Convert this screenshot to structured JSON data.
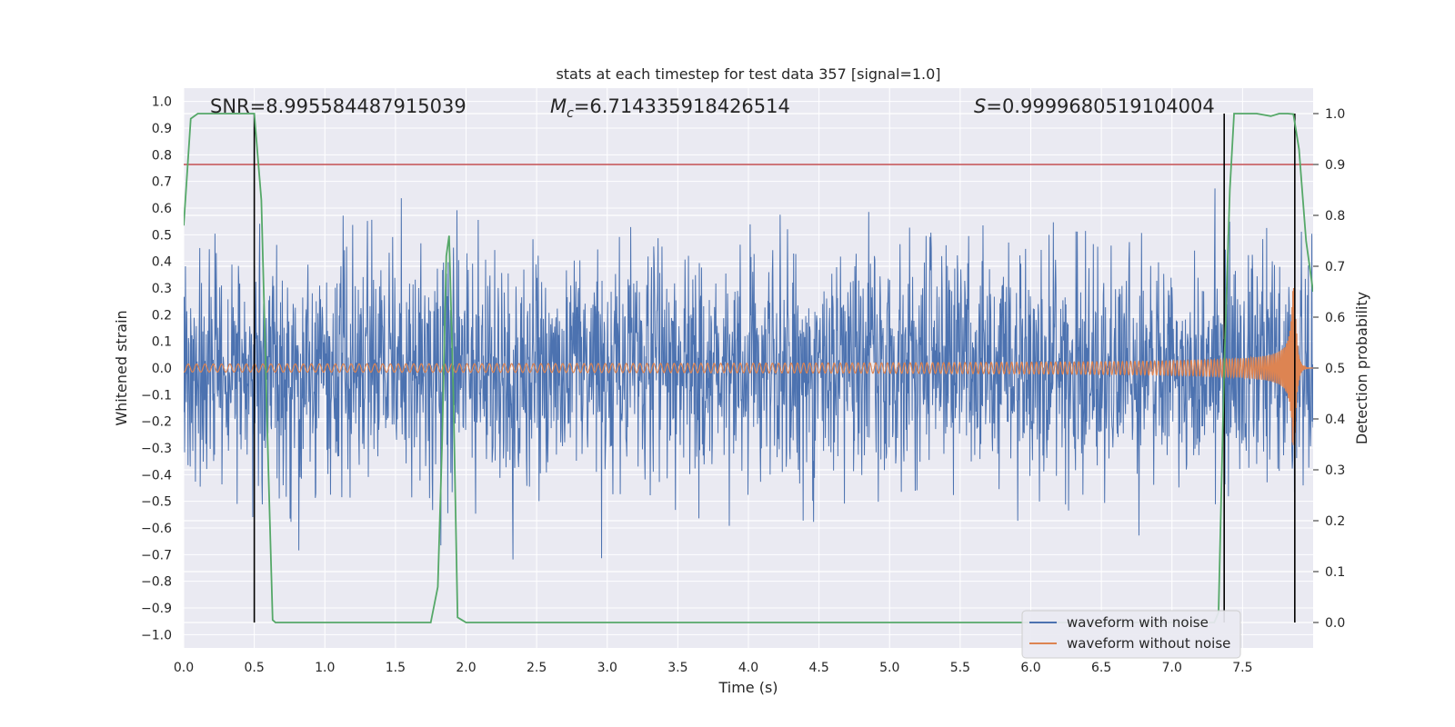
{
  "chart_data": {
    "type": "line",
    "title": "stats at each timestep for test data 357 [signal=1.0]",
    "xlabel": "Time (s)",
    "ylabel": "Whitened strain",
    "y2label": "Detection probability",
    "xlim": [
      0.0,
      8.0
    ],
    "ylim": [
      -1.05,
      1.05
    ],
    "y2lim": [
      -0.05,
      1.05
    ],
    "xticks": [
      "0.0",
      "0.5",
      "1.0",
      "1.5",
      "2.0",
      "2.5",
      "3.0",
      "3.5",
      "4.0",
      "4.5",
      "5.0",
      "5.5",
      "6.0",
      "6.5",
      "7.0",
      "7.5"
    ],
    "yticks": [
      "1.0",
      "0.9",
      "0.8",
      "0.7",
      "0.6",
      "0.5",
      "0.4",
      "0.3",
      "0.2",
      "0.1",
      "0.0",
      "−0.1",
      "−0.2",
      "−0.3",
      "−0.4",
      "−0.5",
      "−0.6",
      "−0.7",
      "−0.8",
      "−0.9",
      "−1.0"
    ],
    "y2ticks": [
      "1.0",
      "0.9",
      "0.8",
      "0.7",
      "0.6",
      "0.5",
      "0.4",
      "0.3",
      "0.2",
      "0.1",
      "0.0"
    ],
    "grid": true,
    "legend_position": "lower-right",
    "annotations": {
      "snr": "SNR=8.995584487915039",
      "mc": "=6.714335918426514",
      "s": "=0.9999680519104004"
    },
    "threshold_line": {
      "y2": 0.9,
      "color": "#c44e52"
    },
    "vertical_lines": {
      "x": [
        0.5,
        7.37,
        7.87
      ],
      "y2_range": [
        0.0,
        1.0
      ],
      "color": "#000000"
    },
    "series": [
      {
        "name": "waveform with noise",
        "axis": "left",
        "color": "#4c72b0",
        "kind": "noise",
        "sigma": 0.22,
        "envelope_peak": 0.88,
        "x_range": [
          0.0,
          8.0
        ]
      },
      {
        "name": "waveform without noise",
        "axis": "left",
        "color": "#dd8452",
        "kind": "chirp",
        "t_merger": 7.87,
        "amp_start": 0.015,
        "amp_peak": 0.3,
        "x_range": [
          0.0,
          8.0
        ]
      },
      {
        "name": "detection probability",
        "axis": "right",
        "color": "#55a868",
        "x": [
          0.0,
          0.05,
          0.1,
          0.15,
          0.2,
          0.3,
          0.4,
          0.45,
          0.5,
          0.55,
          0.6,
          0.63,
          0.65,
          0.7,
          1.0,
          1.5,
          1.75,
          1.8,
          1.83,
          1.86,
          1.88,
          1.91,
          1.94,
          1.97,
          2.0,
          2.5,
          3.0,
          4.0,
          5.0,
          6.0,
          7.0,
          7.3,
          7.33,
          7.37,
          7.41,
          7.44,
          7.5,
          7.6,
          7.7,
          7.76,
          7.82,
          7.86,
          7.9,
          7.95,
          8.0
        ],
        "y": [
          0.78,
          0.99,
          1.0,
          1.0,
          1.0,
          1.0,
          1.0,
          1.0,
          1.0,
          0.83,
          0.3,
          0.005,
          0.0,
          0.0,
          0.0,
          0.0,
          0.0,
          0.07,
          0.35,
          0.72,
          0.76,
          0.45,
          0.01,
          0.005,
          0.0,
          0.0,
          0.0,
          0.0,
          0.0,
          0.0,
          0.0,
          0.0,
          0.02,
          0.5,
          0.85,
          1.0,
          1.0,
          1.0,
          0.995,
          1.0,
          1.0,
          0.999,
          0.93,
          0.75,
          0.65
        ]
      }
    ]
  }
}
